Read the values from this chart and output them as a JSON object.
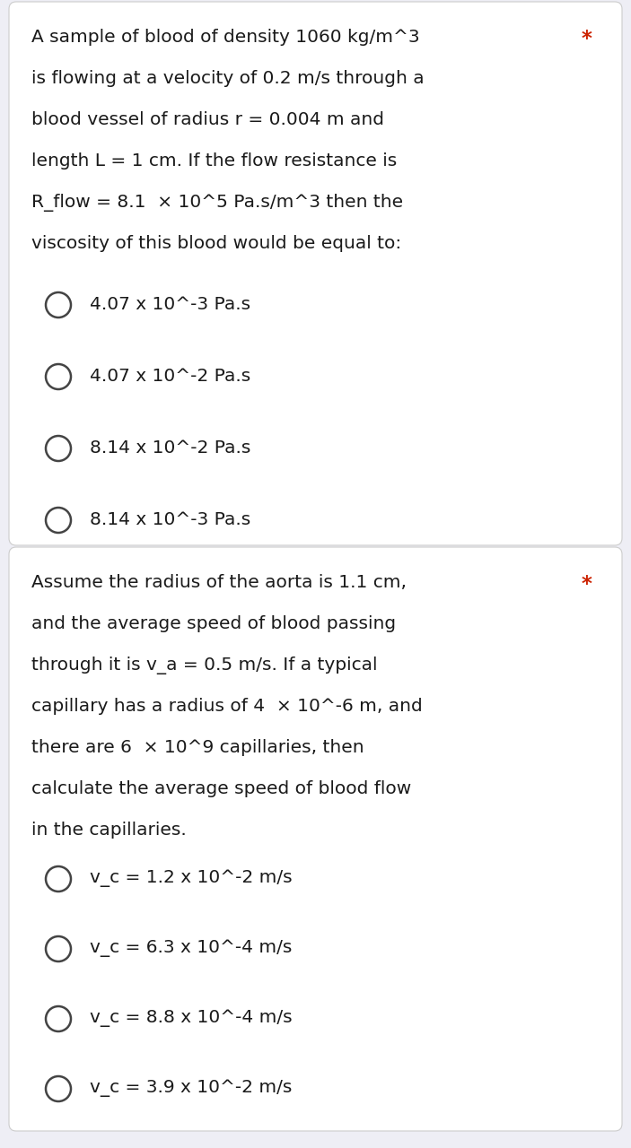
{
  "bg_color": "#eeeef5",
  "card_color": "#ffffff",
  "text_color": "#1a1a1a",
  "star_color": "#cc2200",
  "q1_lines": [
    "A sample of blood of density 1060 kg/m^3",
    "is flowing at a velocity of 0.2 m/s through a",
    "blood vessel of radius r = 0.004 m and",
    "length L = 1 cm. If the flow resistance is",
    "R_flow = 8.1  × 10^5 Pa.s/m^3 then the",
    "viscosity of this blood would be equal to:"
  ],
  "q1_options": [
    "4.07 x 10^-3 Pa.s",
    "4.07 x 10^-2 Pa.s",
    "8.14 x 10^-2 Pa.s",
    "8.14 x 10^-3 Pa.s"
  ],
  "q2_lines": [
    "Assume the radius of the aorta is 1.1 cm,",
    "and the average speed of blood passing",
    "through it is v_a = 0.5 m/s. If a typical",
    "capillary has a radius of 4  × 10^-6 m, and",
    "there are 6  × 10^9 capillaries, then",
    "calculate the average speed of blood flow",
    "in the capillaries."
  ],
  "q2_options": [
    "v_c = 1.2 x 10^-2 m/s",
    "v_c = 6.3 x 10^-4 m/s",
    "v_c = 8.8 x 10^-4 m/s",
    "v_c = 3.9 x 10^-2 m/s"
  ],
  "font_size": 14.5,
  "fig_width": 7.03,
  "fig_height": 12.8,
  "dpi": 100
}
